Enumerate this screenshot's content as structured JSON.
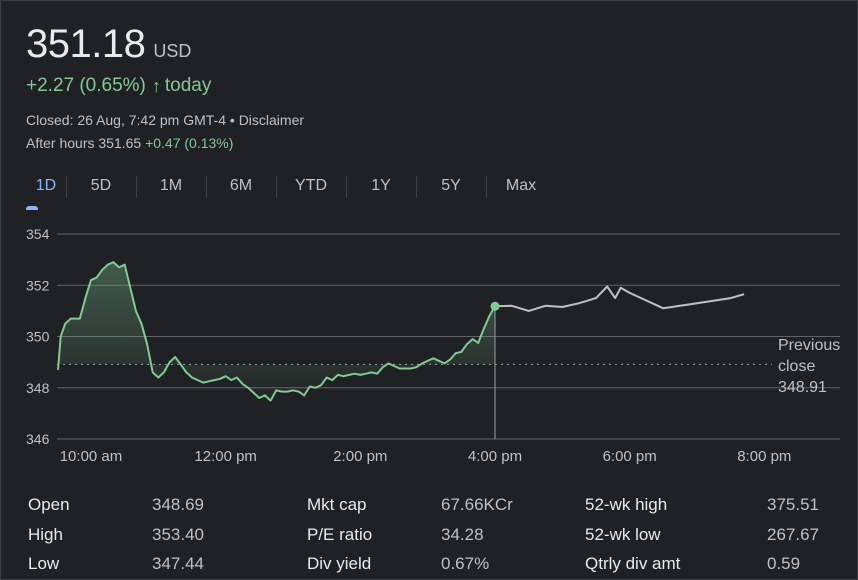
{
  "quote": {
    "price": "351.18",
    "currency": "USD",
    "change": "+2.27 (0.65%)",
    "change_arrow": "↑",
    "change_suffix": "today",
    "closed_text": "Closed: 26 Aug, 7:42 pm GMT-4 •",
    "disclaimer": "Disclaimer",
    "after_hours_label": "After hours 351.65",
    "after_hours_change": "+0.47 (0.13%)"
  },
  "tabs": [
    "1D",
    "5D",
    "1M",
    "6M",
    "YTD",
    "1Y",
    "5Y",
    "Max"
  ],
  "active_tab": "1D",
  "colors": {
    "up": "#81c995",
    "after_hours_line": "#bdc1c6",
    "grid": "#5f6368",
    "tab_active": "#8ab4f8"
  },
  "chart_data": {
    "type": "line",
    "ylim": [
      346,
      354
    ],
    "y_ticks": [
      "354",
      "352",
      "350",
      "348",
      "346"
    ],
    "x_ticks": [
      "10:00 am",
      "12:00 pm",
      "2:00 pm",
      "4:00 pm",
      "6:00 pm",
      "8:00 pm"
    ],
    "previous_close": 348.91,
    "previous_close_label": [
      "Previous",
      "close",
      "348.91"
    ],
    "series": [
      {
        "session": "regular",
        "points": [
          [
            "09:30",
            348.7
          ],
          [
            "09:33",
            350.0
          ],
          [
            "09:37",
            350.5
          ],
          [
            "09:42",
            350.7
          ],
          [
            "09:50",
            350.7
          ],
          [
            "09:55",
            351.5
          ],
          [
            "10:00",
            352.2
          ],
          [
            "10:05",
            352.3
          ],
          [
            "10:10",
            352.6
          ],
          [
            "10:15",
            352.8
          ],
          [
            "10:20",
            352.9
          ],
          [
            "10:25",
            352.7
          ],
          [
            "10:30",
            352.8
          ],
          [
            "10:35",
            351.9
          ],
          [
            "10:40",
            351.0
          ],
          [
            "10:45",
            350.5
          ],
          [
            "10:50",
            349.7
          ],
          [
            "10:55",
            348.6
          ],
          [
            "11:00",
            348.4
          ],
          [
            "11:05",
            348.6
          ],
          [
            "11:10",
            349.0
          ],
          [
            "11:15",
            349.2
          ],
          [
            "11:20",
            348.9
          ],
          [
            "11:25",
            348.6
          ],
          [
            "11:30",
            348.4
          ],
          [
            "11:35",
            348.3
          ],
          [
            "11:40",
            348.2
          ],
          [
            "11:45",
            348.25
          ],
          [
            "11:50",
            348.3
          ],
          [
            "11:55",
            348.35
          ],
          [
            "12:00",
            348.45
          ],
          [
            "12:05",
            348.3
          ],
          [
            "12:10",
            348.4
          ],
          [
            "12:15",
            348.15
          ],
          [
            "12:20",
            348.0
          ],
          [
            "12:25",
            347.8
          ],
          [
            "12:30",
            347.6
          ],
          [
            "12:35",
            347.7
          ],
          [
            "12:40",
            347.5
          ],
          [
            "12:45",
            347.9
          ],
          [
            "12:50",
            347.85
          ],
          [
            "12:55",
            347.85
          ],
          [
            "13:00",
            347.9
          ],
          [
            "13:05",
            347.85
          ],
          [
            "13:10",
            347.7
          ],
          [
            "13:15",
            348.05
          ],
          [
            "13:20",
            348.0
          ],
          [
            "13:25",
            348.1
          ],
          [
            "13:30",
            348.4
          ],
          [
            "13:35",
            348.3
          ],
          [
            "13:40",
            348.5
          ],
          [
            "13:45",
            348.45
          ],
          [
            "13:50",
            348.5
          ],
          [
            "13:55",
            348.55
          ],
          [
            "14:00",
            348.5
          ],
          [
            "14:05",
            348.55
          ],
          [
            "14:10",
            348.6
          ],
          [
            "14:15",
            348.55
          ],
          [
            "14:20",
            348.8
          ],
          [
            "14:25",
            348.95
          ],
          [
            "14:30",
            348.85
          ],
          [
            "14:35",
            348.75
          ],
          [
            "14:40",
            348.75
          ],
          [
            "14:45",
            348.75
          ],
          [
            "14:50",
            348.8
          ],
          [
            "14:55",
            348.95
          ],
          [
            "15:00",
            349.05
          ],
          [
            "15:05",
            349.15
          ],
          [
            "15:10",
            349.05
          ],
          [
            "15:15",
            348.95
          ],
          [
            "15:20",
            349.1
          ],
          [
            "15:25",
            349.35
          ],
          [
            "15:30",
            349.4
          ],
          [
            "15:35",
            349.7
          ],
          [
            "15:40",
            349.9
          ],
          [
            "15:45",
            349.75
          ],
          [
            "15:50",
            350.3
          ],
          [
            "15:55",
            350.8
          ],
          [
            "16:00",
            351.18
          ]
        ]
      },
      {
        "session": "after_hours",
        "points": [
          [
            "16:00",
            351.18
          ],
          [
            "16:15",
            351.2
          ],
          [
            "16:30",
            351.0
          ],
          [
            "16:45",
            351.2
          ],
          [
            "17:00",
            351.15
          ],
          [
            "17:15",
            351.3
          ],
          [
            "17:30",
            351.5
          ],
          [
            "17:40",
            351.95
          ],
          [
            "17:47",
            351.5
          ],
          [
            "17:52",
            351.9
          ],
          [
            "18:00",
            351.7
          ],
          [
            "18:30",
            351.1
          ],
          [
            "19:00",
            351.3
          ],
          [
            "19:30",
            351.5
          ],
          [
            "19:42",
            351.65
          ]
        ]
      }
    ]
  },
  "stats": [
    [
      {
        "label": "Open",
        "value": "348.69"
      },
      {
        "label": "High",
        "value": "353.40"
      },
      {
        "label": "Low",
        "value": "347.44"
      }
    ],
    [
      {
        "label": "Mkt cap",
        "value": "67.66KCr"
      },
      {
        "label": "P/E ratio",
        "value": "34.28"
      },
      {
        "label": "Div yield",
        "value": "0.67%"
      }
    ],
    [
      {
        "label": "52-wk high",
        "value": "375.51"
      },
      {
        "label": "52-wk low",
        "value": "267.67"
      },
      {
        "label": "Qtrly div amt",
        "value": "0.59"
      }
    ]
  ]
}
